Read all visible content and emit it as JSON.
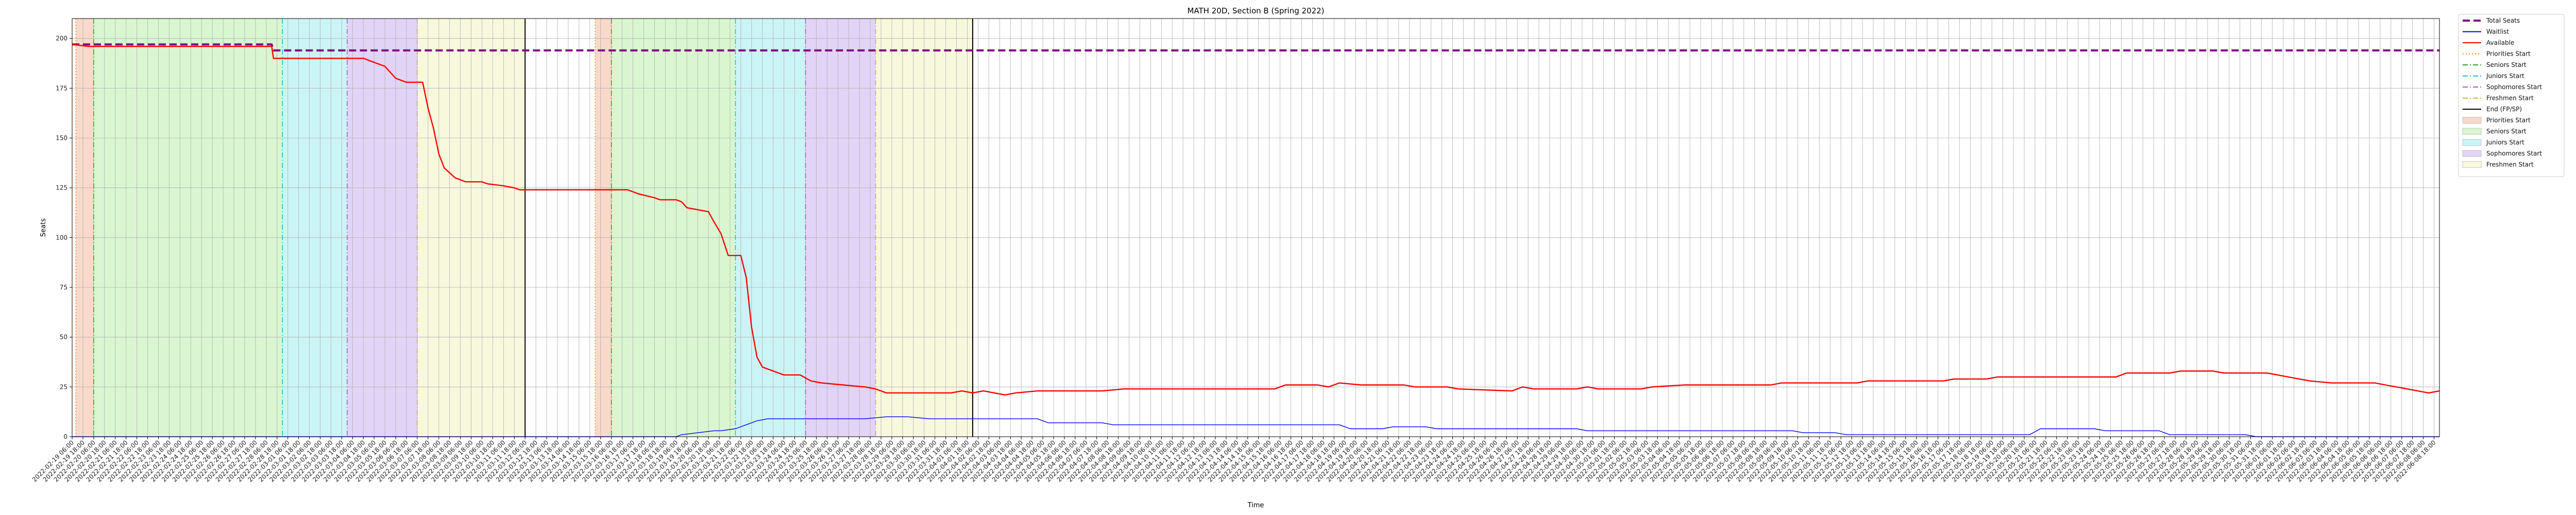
{
  "chart_data": {
    "type": "line",
    "title": "MATH 20D, Section B (Spring 2022)",
    "xlabel": "Time",
    "ylabel": "Seats",
    "ylim": [
      0,
      210
    ],
    "yticks": [
      0,
      25,
      50,
      75,
      100,
      125,
      150,
      175,
      200
    ],
    "xlim": [
      "2022-02-19 06:00",
      "2022-06-09 00:00"
    ],
    "grid": true,
    "legend_position": "outside-right",
    "series": [
      {
        "name": "Total Seats",
        "color": "#800080",
        "style": "dashed",
        "points": [
          [
            "2022-02-19 06:00",
            197
          ],
          [
            "2022-02-28 12:00",
            197
          ],
          [
            "2022-02-28 14:00",
            194
          ],
          [
            "2022-06-09 00:00",
            194
          ]
        ]
      },
      {
        "name": "Waitlist",
        "color": "#0000ff",
        "style": "solid",
        "points": [
          [
            "2022-02-19 06:00",
            0
          ],
          [
            "2022-03-19 06:00",
            0
          ],
          [
            "2022-03-19 12:00",
            1
          ],
          [
            "2022-03-20 06:00",
            2
          ],
          [
            "2022-03-21 00:00",
            3
          ],
          [
            "2022-03-21 08:00",
            3
          ],
          [
            "2022-03-22 00:00",
            4
          ],
          [
            "2022-03-22 12:00",
            6
          ],
          [
            "2022-03-23 00:00",
            8
          ],
          [
            "2022-03-23 12:00",
            9
          ],
          [
            "2022-03-25 00:00",
            9
          ],
          [
            "2022-03-28 00:00",
            9
          ],
          [
            "2022-03-29 00:00",
            10
          ],
          [
            "2022-03-30 00:00",
            10
          ],
          [
            "2022-03-31 00:00",
            9
          ],
          [
            "2022-04-05 00:00",
            9
          ],
          [
            "2022-04-05 12:00",
            7
          ],
          [
            "2022-04-08 00:00",
            7
          ],
          [
            "2022-04-08 12:00",
            6
          ],
          [
            "2022-04-19 00:00",
            6
          ],
          [
            "2022-04-19 12:00",
            4
          ],
          [
            "2022-04-21 00:00",
            4
          ],
          [
            "2022-04-21 12:00",
            5
          ],
          [
            "2022-04-23 00:00",
            5
          ],
          [
            "2022-04-23 12:00",
            4
          ],
          [
            "2022-04-30 00:00",
            4
          ],
          [
            "2022-04-30 12:00",
            3
          ],
          [
            "2022-05-10 00:00",
            3
          ],
          [
            "2022-05-10 12:00",
            2
          ],
          [
            "2022-05-12 00:00",
            2
          ],
          [
            "2022-05-12 12:00",
            1
          ],
          [
            "2022-05-21 00:00",
            1
          ],
          [
            "2022-05-21 12:00",
            4
          ],
          [
            "2022-05-24 00:00",
            4
          ],
          [
            "2022-05-24 12:00",
            3
          ],
          [
            "2022-05-27 00:00",
            3
          ],
          [
            "2022-05-27 12:00",
            1
          ],
          [
            "2022-05-31 00:00",
            1
          ],
          [
            "2022-05-31 12:00",
            0
          ],
          [
            "2022-06-09 00:00",
            0
          ]
        ]
      },
      {
        "name": "Available",
        "color": "#ff0000",
        "style": "solid",
        "points": [
          [
            "2022-02-19 06:00",
            197
          ],
          [
            "2022-02-20 00:00",
            196
          ],
          [
            "2022-02-28 12:00",
            196
          ],
          [
            "2022-02-28 14:00",
            190
          ],
          [
            "2022-03-04 18:00",
            190
          ],
          [
            "2022-03-05 06:00",
            188
          ],
          [
            "2022-03-05 18:00",
            186
          ],
          [
            "2022-03-06 06:00",
            180
          ],
          [
            "2022-03-06 18:00",
            178
          ],
          [
            "2022-03-07 12:00",
            178
          ],
          [
            "2022-03-07 18:00",
            165
          ],
          [
            "2022-03-08 00:00",
            155
          ],
          [
            "2022-03-08 06:00",
            142
          ],
          [
            "2022-03-08 12:00",
            135
          ],
          [
            "2022-03-09 00:00",
            130
          ],
          [
            "2022-03-09 12:00",
            128
          ],
          [
            "2022-03-10 06:00",
            128
          ],
          [
            "2022-03-10 12:00",
            127
          ],
          [
            "2022-03-11 06:00",
            126
          ],
          [
            "2022-03-11 18:00",
            125
          ],
          [
            "2022-03-12 00:00",
            124
          ],
          [
            "2022-03-17 00:00",
            124
          ],
          [
            "2022-03-17 12:00",
            122
          ],
          [
            "2022-03-18 06:00",
            120
          ],
          [
            "2022-03-18 12:00",
            119
          ],
          [
            "2022-03-19 06:00",
            119
          ],
          [
            "2022-03-19 12:00",
            118
          ],
          [
            "2022-03-19 18:00",
            115
          ],
          [
            "2022-03-20 06:00",
            114
          ],
          [
            "2022-03-20 18:00",
            113
          ],
          [
            "2022-03-21 00:00",
            108
          ],
          [
            "2022-03-21 08:00",
            102
          ],
          [
            "2022-03-21 16:00",
            91
          ],
          [
            "2022-03-22 06:00",
            91
          ],
          [
            "2022-03-22 12:00",
            80
          ],
          [
            "2022-03-22 18:00",
            55
          ],
          [
            "2022-03-23 00:00",
            40
          ],
          [
            "2022-03-23 06:00",
            35
          ],
          [
            "2022-03-23 18:00",
            33
          ],
          [
            "2022-03-24 06:00",
            31
          ],
          [
            "2022-03-25 00:00",
            31
          ],
          [
            "2022-03-25 12:00",
            28
          ],
          [
            "2022-03-26 00:00",
            27
          ],
          [
            "2022-03-27 00:00",
            26
          ],
          [
            "2022-03-28 00:00",
            25
          ],
          [
            "2022-03-28 12:00",
            24
          ],
          [
            "2022-03-29 00:00",
            22
          ],
          [
            "2022-04-01 00:00",
            22
          ],
          [
            "2022-04-01 12:00",
            23
          ],
          [
            "2022-04-02 00:00",
            22
          ],
          [
            "2022-04-02 12:00",
            23
          ],
          [
            "2022-04-03 00:00",
            22
          ],
          [
            "2022-04-03 12:00",
            21
          ],
          [
            "2022-04-04 00:00",
            22
          ],
          [
            "2022-04-05 00:00",
            23
          ],
          [
            "2022-04-08 00:00",
            23
          ],
          [
            "2022-04-09 00:00",
            24
          ],
          [
            "2022-04-16 00:00",
            24
          ],
          [
            "2022-04-16 12:00",
            26
          ],
          [
            "2022-04-18 00:00",
            26
          ],
          [
            "2022-04-18 12:00",
            25
          ],
          [
            "2022-04-19 00:00",
            27
          ],
          [
            "2022-04-20 00:00",
            26
          ],
          [
            "2022-04-22 00:00",
            26
          ],
          [
            "2022-04-22 12:00",
            25
          ],
          [
            "2022-04-24 00:00",
            25
          ],
          [
            "2022-04-24 12:00",
            24
          ],
          [
            "2022-04-27 00:00",
            23
          ],
          [
            "2022-04-27 12:00",
            25
          ],
          [
            "2022-04-28 00:00",
            24
          ],
          [
            "2022-04-30 00:00",
            24
          ],
          [
            "2022-04-30 12:00",
            25
          ],
          [
            "2022-05-01 00:00",
            24
          ],
          [
            "2022-05-03 00:00",
            24
          ],
          [
            "2022-05-03 12:00",
            25
          ],
          [
            "2022-05-05 00:00",
            26
          ],
          [
            "2022-05-09 00:00",
            26
          ],
          [
            "2022-05-09 12:00",
            27
          ],
          [
            "2022-05-13 00:00",
            27
          ],
          [
            "2022-05-13 12:00",
            28
          ],
          [
            "2022-05-17 00:00",
            28
          ],
          [
            "2022-05-17 12:00",
            29
          ],
          [
            "2022-05-19 00:00",
            29
          ],
          [
            "2022-05-19 12:00",
            30
          ],
          [
            "2022-05-25 00:00",
            30
          ],
          [
            "2022-05-25 12:00",
            32
          ],
          [
            "2022-05-27 12:00",
            32
          ],
          [
            "2022-05-28 00:00",
            33
          ],
          [
            "2022-05-29 12:00",
            33
          ],
          [
            "2022-05-30 00:00",
            32
          ],
          [
            "2022-06-01 00:00",
            32
          ],
          [
            "2022-06-01 12:00",
            31
          ],
          [
            "2022-06-02 00:00",
            30
          ],
          [
            "2022-06-02 12:00",
            29
          ],
          [
            "2022-06-03 00:00",
            28
          ],
          [
            "2022-06-04 00:00",
            27
          ],
          [
            "2022-06-06 00:00",
            27
          ],
          [
            "2022-06-06 12:00",
            26
          ],
          [
            "2022-06-07 00:00",
            25
          ],
          [
            "2022-06-07 12:00",
            24
          ],
          [
            "2022-06-08 00:00",
            23
          ],
          [
            "2022-06-08 12:00",
            22
          ],
          [
            "2022-06-09 00:00",
            23
          ]
        ]
      }
    ],
    "period_markers": [
      {
        "name": "Priorities Start",
        "start": "2022-02-19 10:00",
        "end": "2022-02-20 06:00",
        "fill": "#f4c0a6",
        "line_color": "#ff7f0e",
        "line_style": "dotted"
      },
      {
        "name": "Seniors Start",
        "start": "2022-02-20 06:00",
        "end": "2022-03-01 00:00",
        "fill": "#bff0b0",
        "line_color": "#2ca02c",
        "line_style": "dashdot"
      },
      {
        "name": "Juniors Start",
        "start": "2022-03-01 00:00",
        "end": "2022-03-04 00:00",
        "fill": "#a8ecf0",
        "line_color": "#17becf",
        "line_style": "dashdot"
      },
      {
        "name": "Sophomores Start",
        "start": "2022-03-04 00:00",
        "end": "2022-03-07 06:00",
        "fill": "#cdb8f0",
        "line_color": "#9467bd",
        "line_style": "dashdot"
      },
      {
        "name": "Freshmen Start",
        "start": "2022-03-07 06:00",
        "end": "2022-03-12 06:00",
        "fill": "#f4f4c6",
        "line_color": "#bcbd22",
        "line_style": "dashdot"
      },
      {
        "name": "End (FP/SP)",
        "at": "2022-03-12 06:00",
        "line_color": "#000000",
        "line_style": "solid"
      },
      {
        "name": "Priorities Start",
        "start": "2022-03-15 12:00",
        "end": "2022-03-16 06:00",
        "fill": "#f4c0a6",
        "line_color": "#ff7f0e",
        "line_style": "dotted"
      },
      {
        "name": "Seniors Start",
        "start": "2022-03-16 06:00",
        "end": "2022-03-22 00:00",
        "fill": "#bff0b0",
        "line_color": "#2ca02c",
        "line_style": "dashdot"
      },
      {
        "name": "Juniors Start",
        "start": "2022-03-22 00:00",
        "end": "2022-03-25 06:00",
        "fill": "#a8ecf0",
        "line_color": "#17becf",
        "line_style": "dashdot"
      },
      {
        "name": "Sophomores Start",
        "start": "2022-03-25 06:00",
        "end": "2022-03-28 12:00",
        "fill": "#cdb8f0",
        "line_color": "#9467bd",
        "line_style": "dashdot"
      },
      {
        "name": "Freshmen Start",
        "start": "2022-03-28 12:00",
        "end": "2022-04-02 00:00",
        "fill": "#f4f4c6",
        "line_color": "#bcbd22",
        "line_style": "dashdot"
      },
      {
        "name": "End (FP/SP)",
        "at": "2022-04-02 00:00",
        "line_color": "#000000",
        "line_style": "solid"
      }
    ],
    "x_tick_interval_hours": 12,
    "legend": [
      {
        "label": "Total Seats",
        "kind": "line",
        "color": "#800080",
        "style": "dashed"
      },
      {
        "label": "Waitlist",
        "kind": "line",
        "color": "#0000ff",
        "style": "solid"
      },
      {
        "label": "Available",
        "kind": "line",
        "color": "#ff0000",
        "style": "solid"
      },
      {
        "label": "Priorities Start",
        "kind": "line",
        "color": "#ff7f0e",
        "style": "dotted"
      },
      {
        "label": "Seniors Start",
        "kind": "line",
        "color": "#2ca02c",
        "style": "dashdot"
      },
      {
        "label": "Juniors Start",
        "kind": "line",
        "color": "#17becf",
        "style": "dashdot"
      },
      {
        "label": "Sophomores Start",
        "kind": "line",
        "color": "#9467bd",
        "style": "dashdot"
      },
      {
        "label": "Freshmen Start",
        "kind": "line",
        "color": "#bcbd22",
        "style": "dashdot"
      },
      {
        "label": "End (FP/SP)",
        "kind": "line",
        "color": "#000000",
        "style": "solid"
      },
      {
        "label": "Priorities Start",
        "kind": "patch",
        "color": "#f4c0a6"
      },
      {
        "label": "Seniors Start",
        "kind": "patch",
        "color": "#bff0b0"
      },
      {
        "label": "Juniors Start",
        "kind": "patch",
        "color": "#a8ecf0"
      },
      {
        "label": "Sophomores Start",
        "kind": "patch",
        "color": "#cdb8f0"
      },
      {
        "label": "Freshmen Start",
        "kind": "patch",
        "color": "#f4f4c6"
      }
    ]
  }
}
